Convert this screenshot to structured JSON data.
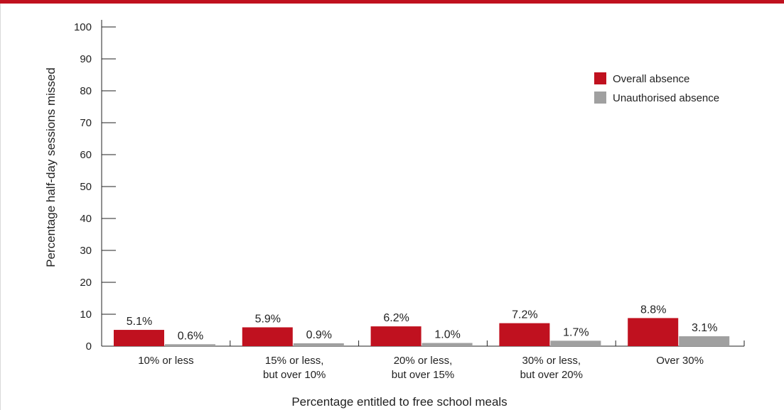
{
  "colors": {
    "accent_bar": "#c0111f",
    "series_overall": "#c0111f",
    "series_unauthorised": "#a0a0a0",
    "axis": "#222222"
  },
  "chart_data": {
    "type": "bar",
    "title": "",
    "xlabel": "Percentage entitled to free school meals",
    "ylabel": "Percentage half-day sessions missed",
    "ylim": [
      0,
      100
    ],
    "yticks": [
      0,
      10,
      20,
      30,
      40,
      50,
      60,
      70,
      80,
      90,
      100
    ],
    "categories": [
      [
        "10% or less"
      ],
      [
        "15% or less,",
        "but over 10%"
      ],
      [
        "20% or less,",
        "but over 15%"
      ],
      [
        "30% or less,",
        "but over 20%"
      ],
      [
        "Over 30%"
      ]
    ],
    "series": [
      {
        "name": "Overall absence",
        "color": "#c0111f",
        "values": [
          5.1,
          5.9,
          6.2,
          7.2,
          8.8
        ],
        "labels": [
          "5.1%",
          "5.9%",
          "6.2%",
          "7.2%",
          "8.8%"
        ]
      },
      {
        "name": "Unauthorised absence",
        "color": "#a0a0a0",
        "values": [
          0.6,
          0.9,
          1.0,
          1.7,
          3.1
        ],
        "labels": [
          "0.6%",
          "0.9%",
          "1.0%",
          "1.7%",
          "3.1%"
        ]
      }
    ],
    "legend": "top-right",
    "grid": false
  }
}
